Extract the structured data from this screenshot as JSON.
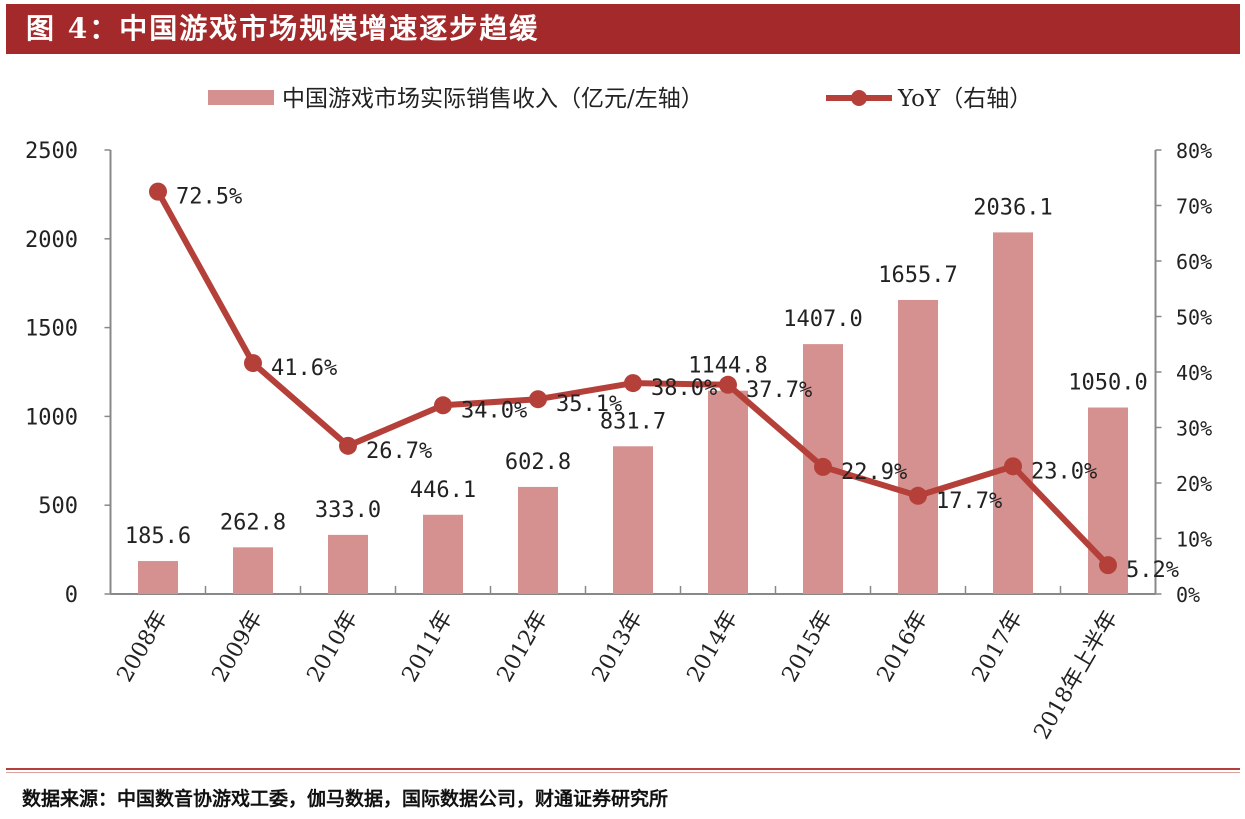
{
  "header": {
    "title": "图 4：中国游戏市场规模增速逐步趋缓"
  },
  "footer": {
    "source": "数据来源：中国数音协游戏工委，伽马数据，国际数据公司，财通证券研究所"
  },
  "colors": {
    "header": "#a3292a",
    "bar": "#d4918f",
    "line": "#b5403a"
  },
  "chart_data": {
    "type": "bar+line",
    "categories": [
      "2008年",
      "2009年",
      "2010年",
      "2011年",
      "2012年",
      "2013年",
      "2014年",
      "2015年",
      "2016年",
      "2017年",
      "2018年上半年"
    ],
    "series": [
      {
        "name": "中国游戏市场实际销售收入（亿元/左轴）",
        "type": "bar",
        "axis": "left",
        "values": [
          185.6,
          262.8,
          333.0,
          446.1,
          602.8,
          831.7,
          1144.8,
          1407.0,
          1655.7,
          2036.1,
          1050.0
        ],
        "labels": [
          "185.6",
          "262.8",
          "333.0",
          "446.1",
          "602.8",
          "831.7",
          "1144.8",
          "1407.0",
          "1655.7",
          "2036.1",
          "1050.0"
        ]
      },
      {
        "name": "YoY（右轴）",
        "type": "line",
        "axis": "right",
        "values": [
          72.5,
          41.6,
          26.7,
          34.0,
          35.1,
          38.0,
          37.7,
          22.9,
          17.7,
          23.0,
          5.2
        ],
        "labels": [
          "72.5%",
          "41.6%",
          "26.7%",
          "34.0%",
          "35.1%",
          "38.0%",
          "37.7%",
          "22.9%",
          "17.7%",
          "23.0%",
          "5.2%"
        ]
      }
    ],
    "y_left": {
      "range": [
        0,
        2500
      ],
      "ticks": [
        "0",
        "500",
        "1000",
        "1500",
        "2000",
        "2500"
      ]
    },
    "y_right": {
      "range": [
        0,
        80
      ],
      "ticks": [
        "0%",
        "10%",
        "20%",
        "30%",
        "40%",
        "50%",
        "60%",
        "70%",
        "80%"
      ]
    },
    "legend": "top",
    "grid": false
  }
}
